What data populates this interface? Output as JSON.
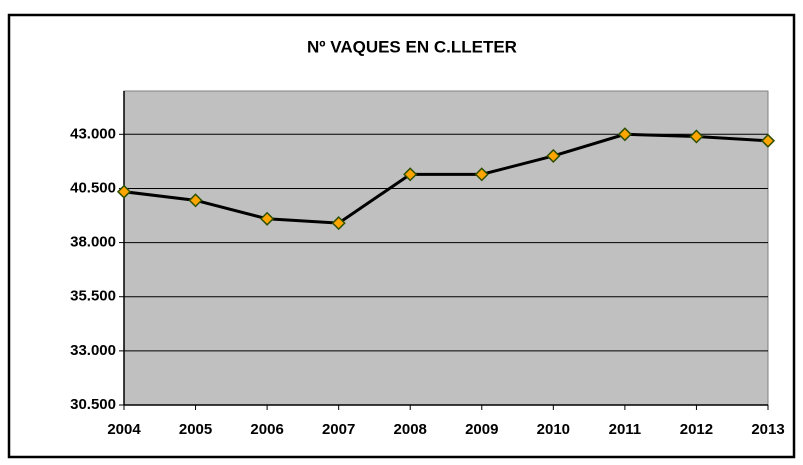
{
  "chart_data": {
    "type": "line",
    "title": "Nº VAQUES EN C.LLETER",
    "categories": [
      "2004",
      "2005",
      "2006",
      "2007",
      "2008",
      "2009",
      "2010",
      "2011",
      "2012",
      "2013"
    ],
    "series": [
      {
        "name": "Nº VAQUES",
        "color": "#000000",
        "marker_color": "#ffa500",
        "values": [
          40350,
          39950,
          39100,
          38900,
          41150,
          41150,
          42000,
          43000,
          42900,
          42700
        ]
      }
    ],
    "ylim": [
      30500,
      45000
    ],
    "yticks": [
      {
        "value": 30500,
        "label": "30.500"
      },
      {
        "value": 33000,
        "label": "33.000"
      },
      {
        "value": 35500,
        "label": "35.500"
      },
      {
        "value": 38000,
        "label": "38.000"
      },
      {
        "value": 40500,
        "label": "40.500"
      },
      {
        "value": 43000,
        "label": "43.000"
      }
    ],
    "grid": true
  }
}
